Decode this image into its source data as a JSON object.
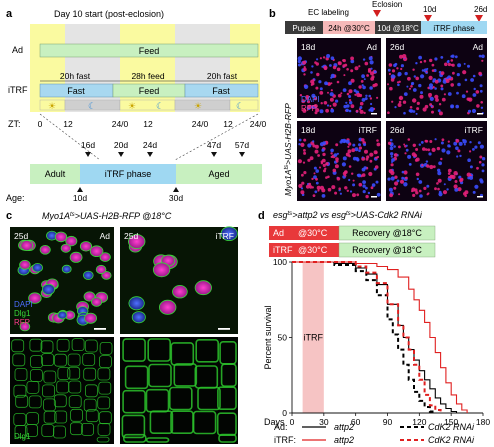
{
  "panel_a": {
    "letter": "a",
    "title": "Day 10 start (post-eclosion)",
    "row_ad": "Ad",
    "row_itrf": "iTRF",
    "feed": "Feed",
    "fast": "Fast",
    "fast20_top": "20h fast",
    "feed28_top": "28h feed",
    "fast20_top2": "20h fast",
    "zt_label": "ZT:",
    "zt_ticks": [
      "0",
      "12",
      "24/0",
      "12",
      "24/0",
      "12",
      "24/0"
    ],
    "age_label": "Age:",
    "phases": {
      "adult": "Adult",
      "itrf": "iTRF phase",
      "aged": "Aged"
    },
    "timepoints_top": [
      "16d",
      "20d",
      "24d",
      "47d",
      "57d"
    ],
    "timepoints_bottom": [
      "10d",
      "30d"
    ],
    "colors": {
      "light": "#fafaa0",
      "dark": "#d6d6d6",
      "feed": "#c8f0c0",
      "fast": "#a8d8f0",
      "itrf_phase": "#9fd8f2",
      "sun": "#c9a400",
      "moon": "#3a8fd8"
    }
  },
  "panel_b": {
    "letter": "b",
    "header": {
      "pupae": "Pupae",
      "ec": "EC labeling",
      "eclosion": "Eclosion",
      "warm": "24h @30°C",
      "cool": "10d @18°C",
      "phase": "iTRF phase",
      "day10": "10d",
      "day26": "26d"
    },
    "ylabel": "Myo1A^ts > UAS-H2B-RFP",
    "ylabel_parts": [
      "Myo1A",
      "ts",
      ">UAS-H2B-RFP"
    ],
    "images": [
      {
        "day": "18d",
        "group": "Ad"
      },
      {
        "day": "26d",
        "group": "Ad"
      },
      {
        "day": "18d",
        "group": "iTRF"
      },
      {
        "day": "26d",
        "group": "iTRF"
      }
    ],
    "stains": [
      "DAPI",
      "RFP"
    ]
  },
  "panel_c": {
    "letter": "c",
    "title_parts": [
      "Myo1A",
      "ts",
      ">UAS-H2B-RFP @18°C"
    ],
    "images": [
      {
        "day": "25d",
        "group": "Ad"
      },
      {
        "day": "25d",
        "group": "iTRF"
      }
    ],
    "stains": [
      "DAPI",
      "Dlg1",
      "RFP"
    ],
    "bottom_stain": "Dlg1"
  },
  "panel_d": {
    "letter": "d",
    "title_parts": [
      "esg",
      "ts",
      ">attp2 vs esg",
      "ts",
      ">UAS-Cdk2 RNAi"
    ],
    "protocol": [
      {
        "group": "Ad",
        "temp": "@30°C",
        "recovery": "Recovery @18°C"
      },
      {
        "group": "iTRF",
        "temp": "@30°C",
        "recovery": "Recovery @18°C"
      }
    ],
    "itrf_band": "iTRF",
    "legend": {
      "ad": "Ad:",
      "itrf": "iTRF:",
      "attp2": "attp2",
      "cdk2": "CdK2 RNAi",
      "cdk2b": "CdK2 RNAi"
    },
    "colors": {
      "ad": "#000000",
      "itrf": "#e02020",
      "band": "#f6c4c4",
      "box": "#e8383a",
      "recovery": "#c8f0c0"
    }
  },
  "chart_data": {
    "type": "line",
    "title": "",
    "xlabel": "Days",
    "ylabel": "Percent survival",
    "xlim": [
      0,
      180
    ],
    "ylim": [
      0,
      100
    ],
    "xticks": [
      0,
      30,
      60,
      90,
      120,
      150,
      180
    ],
    "yticks": [
      0,
      50,
      100
    ],
    "shaded_region": {
      "label": "iTRF",
      "x": [
        10,
        30
      ]
    },
    "series": [
      {
        "name": "Ad: attp2",
        "color": "#000000",
        "dash": "solid",
        "x": [
          0,
          20,
          40,
          60,
          70,
          80,
          90,
          100,
          105,
          110,
          115,
          120,
          125,
          130,
          135,
          140,
          145,
          150,
          155
        ],
        "y": [
          100,
          100,
          99,
          96,
          92,
          85,
          72,
          58,
          50,
          42,
          35,
          28,
          22,
          16,
          10,
          6,
          3,
          1,
          0
        ]
      },
      {
        "name": "iTRF: attp2",
        "color": "#e02020",
        "dash": "solid",
        "x": [
          0,
          30,
          60,
          80,
          90,
          100,
          110,
          115,
          120,
          125,
          130,
          135,
          140,
          145,
          150,
          155,
          160,
          165
        ],
        "y": [
          100,
          100,
          99,
          97,
          95,
          90,
          82,
          75,
          68,
          60,
          50,
          40,
          30,
          20,
          12,
          6,
          2,
          0
        ]
      },
      {
        "name": "Ad: CdK2 RNAi",
        "color": "#000000",
        "dash": "dashed",
        "x": [
          0,
          20,
          40,
          60,
          70,
          80,
          90,
          95,
          100,
          105,
          110,
          115,
          120,
          125,
          130,
          135
        ],
        "y": [
          100,
          100,
          98,
          94,
          88,
          78,
          62,
          52,
          42,
          32,
          22,
          14,
          8,
          4,
          1,
          0
        ]
      },
      {
        "name": "iTRF: CdK2 RNAi",
        "color": "#e02020",
        "dash": "dashed",
        "x": [
          0,
          30,
          60,
          70,
          80,
          90,
          100,
          105,
          110,
          115,
          120,
          125,
          130,
          135,
          140
        ],
        "y": [
          100,
          100,
          97,
          93,
          86,
          72,
          58,
          50,
          42,
          32,
          22,
          12,
          5,
          2,
          0
        ]
      }
    ]
  }
}
